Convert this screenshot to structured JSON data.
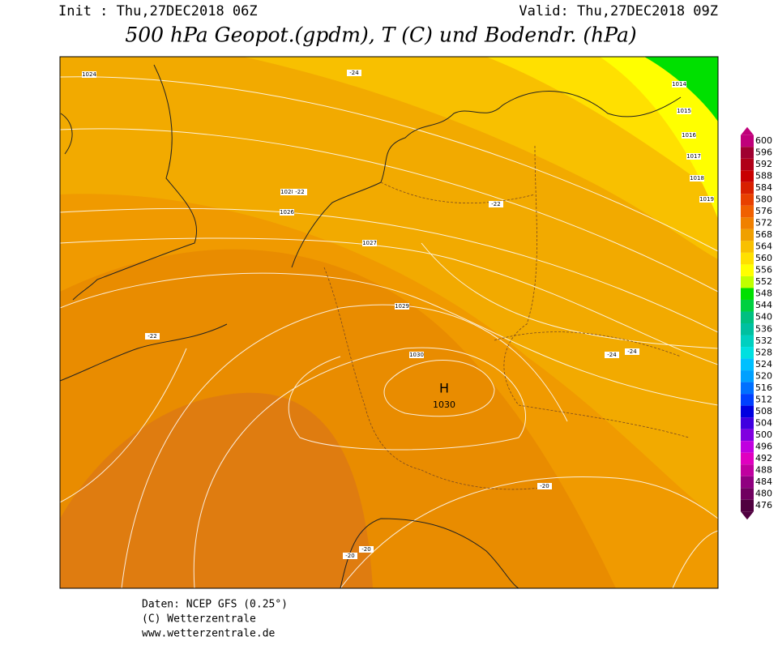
{
  "header": {
    "init": "Init : Thu,27DEC2018 06Z",
    "valid": "Valid: Thu,27DEC2018 09Z",
    "title": "500 hPa Geopot.(gpdm), T (C) und Bodendr. (hPa)"
  },
  "map": {
    "high": {
      "symbol": "H",
      "pressure": "1030"
    },
    "labels": [
      "1024",
      "1026",
      "1027",
      "1028",
      "1029",
      "1030",
      "1014",
      "1015",
      "1016",
      "1017",
      "1018",
      "1019",
      "-24",
      "-22",
      "-22",
      "-24",
      "-24",
      "-22",
      "-20",
      "-20",
      "-20"
    ]
  },
  "colorbar": {
    "values": [
      600,
      596,
      592,
      588,
      584,
      580,
      576,
      572,
      568,
      564,
      560,
      556,
      552,
      548,
      544,
      540,
      536,
      532,
      528,
      524,
      520,
      516,
      512,
      508,
      504,
      500,
      496,
      492,
      488,
      484,
      480,
      476
    ],
    "colors": [
      "#c0007a",
      "#a00030",
      "#b00018",
      "#c80000",
      "#d82000",
      "#e84000",
      "#f06000",
      "#f08000",
      "#f0a000",
      "#f8c000",
      "#ffe000",
      "#ffff00",
      "#c0ff00",
      "#00e000",
      "#00d040",
      "#00c080",
      "#00c0a0",
      "#00d0c0",
      "#00e0e0",
      "#00c0ff",
      "#00a0ff",
      "#0070ff",
      "#0040ff",
      "#0000e0",
      "#4000e0",
      "#8000e0",
      "#c000e0",
      "#e000c0",
      "#c000a0",
      "#900080",
      "#700060",
      "#500040"
    ]
  },
  "footer": [
    "Daten: NCEP GFS (0.25°)",
    "(C) Wetterzentrale",
    "www.wetterzentrale.de"
  ]
}
